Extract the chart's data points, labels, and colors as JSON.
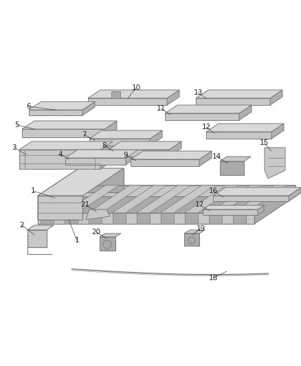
{
  "bg_color": "#ffffff",
  "lc": "#787878",
  "fc_light": "#e0e0e0",
  "fc_mid": "#c8c8c8",
  "fc_dark": "#aaaaaa",
  "fc_top": "#d8d8d8",
  "figsize": [
    4.38,
    5.33
  ],
  "dpi": 100
}
